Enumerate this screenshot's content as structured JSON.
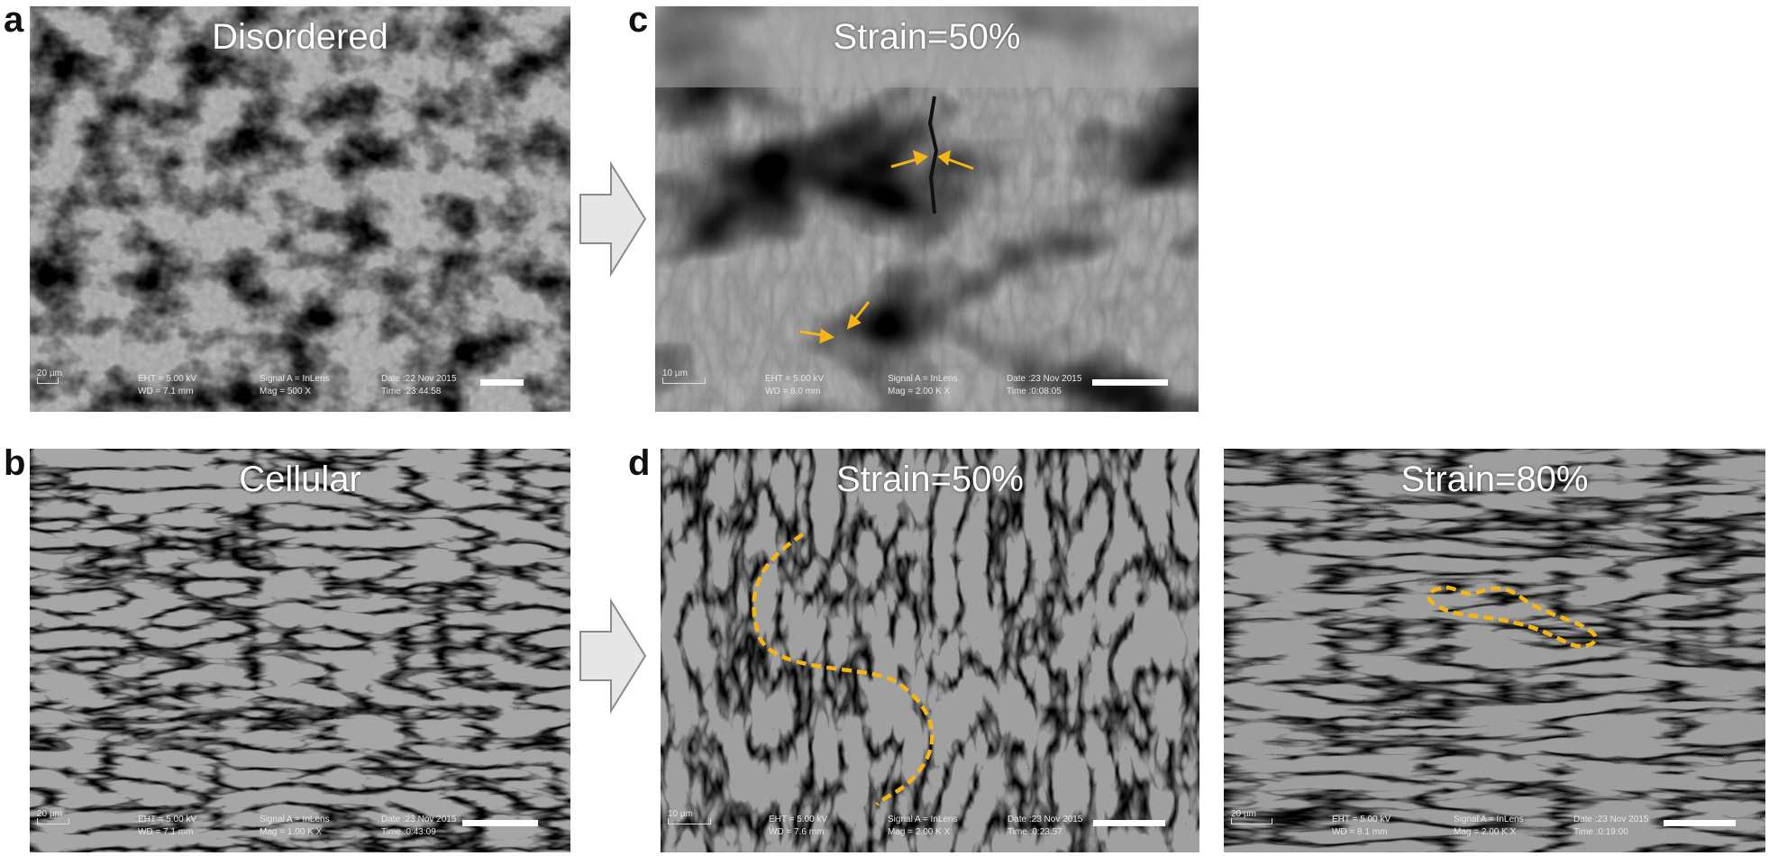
{
  "panels": {
    "a": {
      "letter": "a",
      "title": "Disordered",
      "scale_label": "20 µm",
      "eht": "EHT = 5.00 kV",
      "wd": "WD = 7.1 mm",
      "signal": "Signal A = InLens",
      "mag": "Mag = 500 X",
      "date": "Date :22 Nov 2015",
      "time": "Time :23:44:58"
    },
    "b": {
      "letter": "b",
      "title": "Cellular",
      "scale_label": "20 µm",
      "eht": "EHT = 5.00 kV",
      "wd": "WD = 7.1 mm",
      "signal": "Signal A = InLens",
      "mag": "Mag = 1.00 K X",
      "date": "Date :23 Nov 2015",
      "time": "Time :0:43:09"
    },
    "c": {
      "letter": "c",
      "title": "Strain=50%",
      "scale_label": "10 µm",
      "eht": "EHT = 5.00 kV",
      "wd": "WD = 8.0 mm",
      "signal": "Signal A = InLens",
      "mag": "Mag = 2.00 K X",
      "date": "Date :23 Nov 2015",
      "time": "Time :0:08:05"
    },
    "d1": {
      "letter": "d",
      "title": "Strain=50%",
      "scale_label": "10 µm",
      "eht": "EHT = 5.00 kV",
      "wd": "WD = 7.6 mm",
      "signal": "Signal A = InLens",
      "mag": "Mag = 2.00 K X",
      "date": "Date :23 Nov 2015",
      "time": "Time :0:23:57"
    },
    "d2": {
      "title": "Strain=80%",
      "scale_label": "20 µm",
      "eht": "EHT = 5.00 kV",
      "wd": "WD = 8.1 mm",
      "signal": "Signal A = InLens",
      "mag": "Mag = 2.00 K X",
      "date": "Date :23 Nov 2015",
      "time": "Time :0:19:00"
    }
  },
  "colors": {
    "annotation": "#f5b417",
    "arrow_fill": "#e6e6e6",
    "arrow_stroke": "#8a8a8a"
  }
}
